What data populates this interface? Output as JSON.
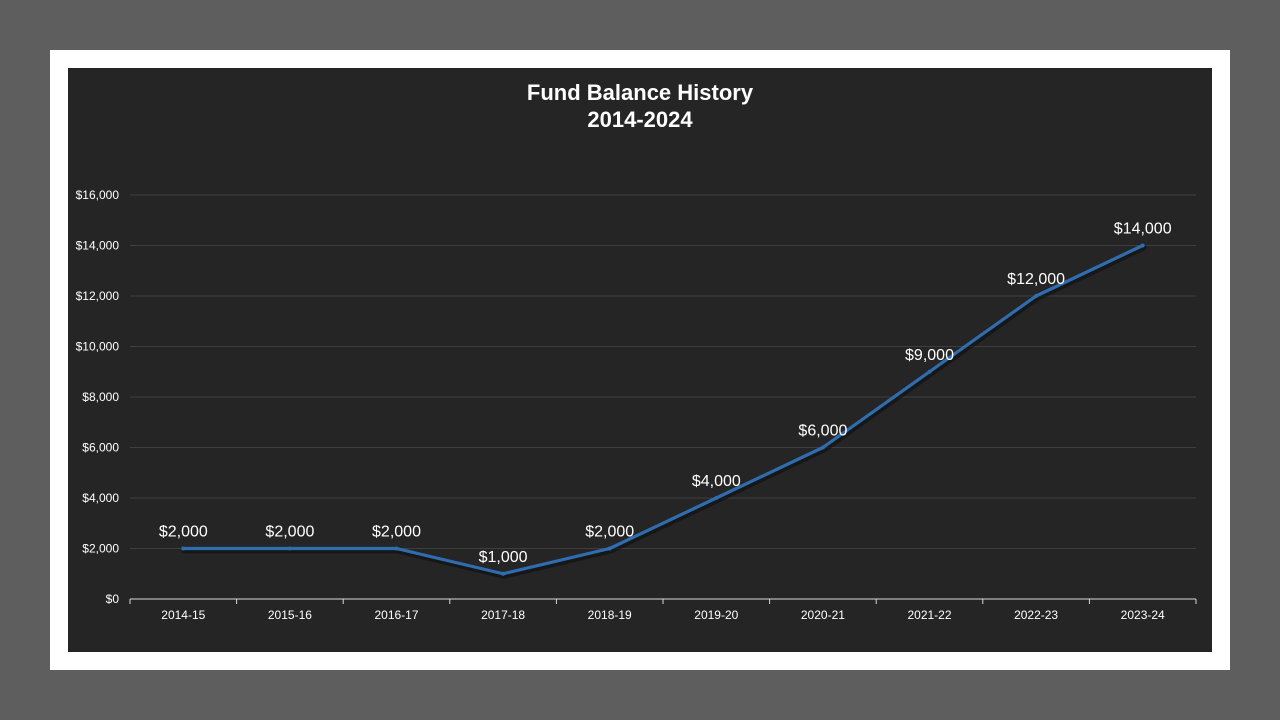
{
  "chart_data": {
    "type": "line",
    "title": "Fund Balance History",
    "subtitle": "2014-2024",
    "categories": [
      "2014-15",
      "2015-16",
      "2016-17",
      "2017-18",
      "2018-19",
      "2019-20",
      "2020-21",
      "2021-22",
      "2022-23",
      "2023-24"
    ],
    "series": [
      {
        "values": [
          2000,
          2000,
          2000,
          1000,
          2000,
          4000,
          6000,
          9000,
          12000,
          14000
        ]
      }
    ],
    "data_labels": [
      "$2,000",
      "$2,000",
      "$2,000",
      "$1,000",
      "$2,000",
      "$4,000",
      "$6,000",
      "$9,000",
      "$12,000",
      "$14,000"
    ],
    "y_ticks": [
      0,
      2000,
      4000,
      6000,
      8000,
      10000,
      12000,
      14000,
      16000
    ],
    "y_tick_labels": [
      "$0",
      "$2,000",
      "$4,000",
      "$6,000",
      "$8,000",
      "$10,000",
      "$12,000",
      "$14,000",
      "$16,000"
    ],
    "ylim": [
      0,
      16000
    ],
    "grid": true,
    "legend": "none",
    "colors": {
      "line": "#2e6db0",
      "background": "#252525",
      "grid": "#3e3e3e",
      "text": "#ffffff",
      "frame": "#ffffff",
      "page": "#5e5e5e"
    }
  }
}
